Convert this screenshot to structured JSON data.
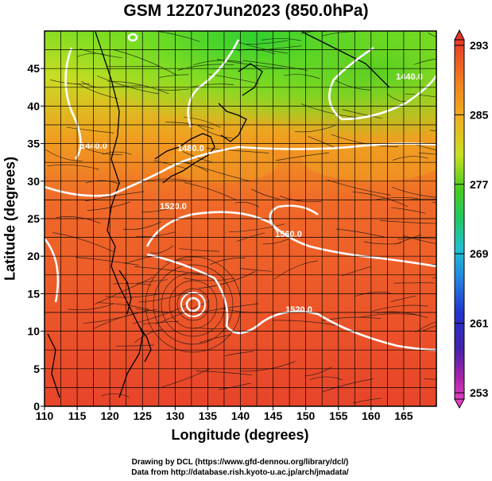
{
  "title": "GSM 12Z07Jun2023 (850.0hPa)",
  "axes": {
    "xlabel": "Longitude (degrees)",
    "ylabel": "Latitude  (degrees)",
    "xticks": [
      "110",
      "115",
      "120",
      "125",
      "130",
      "135",
      "140",
      "145",
      "150",
      "155",
      "160",
      "165"
    ],
    "yticks": [
      "0",
      "5",
      "10",
      "15",
      "20",
      "25",
      "30",
      "35",
      "40",
      "45"
    ],
    "xrange": [
      110,
      170
    ],
    "yrange": [
      0,
      50
    ]
  },
  "colorbar": {
    "labels": [
      "293",
      "285",
      "277",
      "269",
      "261",
      "253"
    ],
    "min": 253,
    "max": 293
  },
  "contours": {
    "labels": [
      "1440.0",
      "1440.0",
      "1480.0",
      "1520.0",
      "1560.0",
      "1520.0"
    ]
  },
  "credits": {
    "line1": "Drawing by DCL (https://www.gfd-dennou.org/library/dcl/)",
    "line2": "Data from http://database.rish.kyoto-u.ac.jp/arch/jmadata/"
  },
  "colors": {
    "warm": "#e8442a",
    "cool": "#22cc33",
    "contour": "#ffffff"
  }
}
